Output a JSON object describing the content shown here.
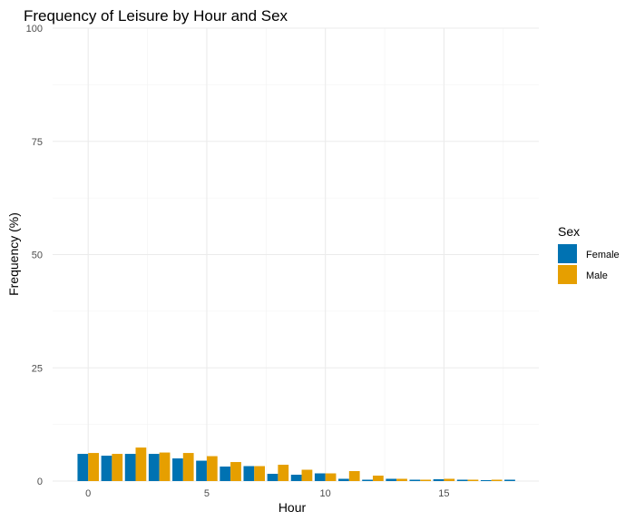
{
  "chart_data": {
    "type": "bar",
    "title": "Frequency of Leisure by Hour and Sex",
    "xlabel": "Hour",
    "ylabel": "Frequency (%)",
    "xlim": [
      -1.5,
      19
    ],
    "ylim": [
      0,
      100
    ],
    "x_ticks": [
      0,
      5,
      10,
      15
    ],
    "y_ticks": [
      0,
      25,
      50,
      75,
      100
    ],
    "grid": true,
    "legend": {
      "title": "Sex",
      "position": "right"
    },
    "x": [
      0,
      1,
      2,
      3,
      4,
      5,
      6,
      7,
      8,
      9,
      10,
      11,
      12,
      13,
      14,
      15,
      16,
      17,
      18
    ],
    "series": [
      {
        "name": "Female",
        "color": "#0072B2",
        "values": [
          6.0,
          5.6,
          6.0,
          6.0,
          5.0,
          4.5,
          3.2,
          3.3,
          1.6,
          1.4,
          1.7,
          0.5,
          0.3,
          0.5,
          0.3,
          0.4,
          0.3,
          0.2,
          0.3
        ]
      },
      {
        "name": "Male",
        "color": "#E69F00",
        "values": [
          6.2,
          6.0,
          7.4,
          6.3,
          6.2,
          5.5,
          4.2,
          3.3,
          3.6,
          2.5,
          1.7,
          2.2,
          1.2,
          0.5,
          0.3,
          0.5,
          0.3,
          0.3,
          null
        ]
      }
    ]
  }
}
